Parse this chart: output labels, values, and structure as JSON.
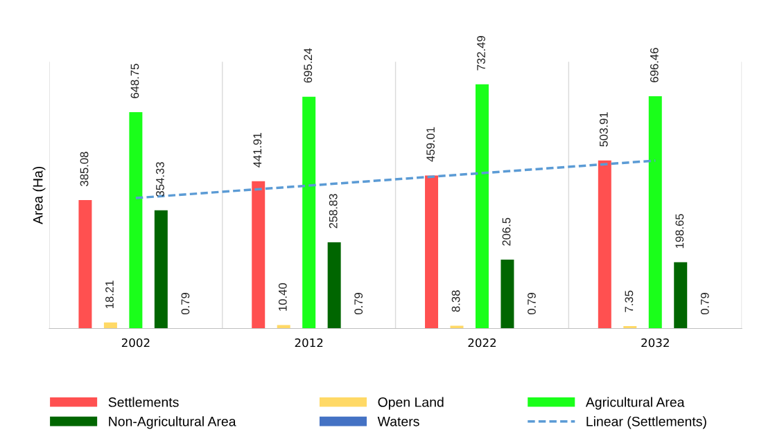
{
  "chart_data": {
    "type": "bar",
    "ylabel": "Area (Ha)",
    "categories": [
      "2002",
      "2012",
      "2022",
      "2032"
    ],
    "series": [
      {
        "name": "Settlements",
        "color": "#ff5050",
        "values": [
          385.08,
          441.91,
          459.01,
          503.91
        ],
        "value_labels": [
          "385.08",
          "441.91",
          "459.01",
          "503.91"
        ]
      },
      {
        "name": "Open Land",
        "color": "#ffd966",
        "values": [
          18.21,
          10.4,
          8.38,
          7.35
        ],
        "value_labels": [
          "18.21",
          "10.40",
          "8.38",
          "7.35"
        ]
      },
      {
        "name": "Agricultural Area",
        "color": "#1aff1a",
        "values": [
          648.75,
          695.24,
          732.49,
          696.46
        ],
        "value_labels": [
          "648.75",
          "695.24",
          "732.49",
          "696.46"
        ]
      },
      {
        "name": "Non-Agricultural Area",
        "color": "#006600",
        "values": [
          354.33,
          258.83,
          206.5,
          198.65
        ],
        "value_labels": [
          "354.33",
          "258.83",
          "206.5",
          "198.65"
        ]
      },
      {
        "name": "Waters",
        "color": "#4472c4",
        "values": [
          0.79,
          0.79,
          0.79,
          0.79
        ],
        "value_labels": [
          "0.79",
          "0.79",
          "0.79",
          "0.79"
        ]
      },
      {
        "name": "Linear (Settlements)",
        "type": "line",
        "color": "#5b9bd5",
        "line_style": "dashed",
        "values": [
          391.44,
          428.8,
          466.16,
          503.52
        ]
      }
    ],
    "ylim": [
      0,
      800
    ],
    "tick_labels": "x",
    "grid": "x",
    "legend": "bottom"
  }
}
